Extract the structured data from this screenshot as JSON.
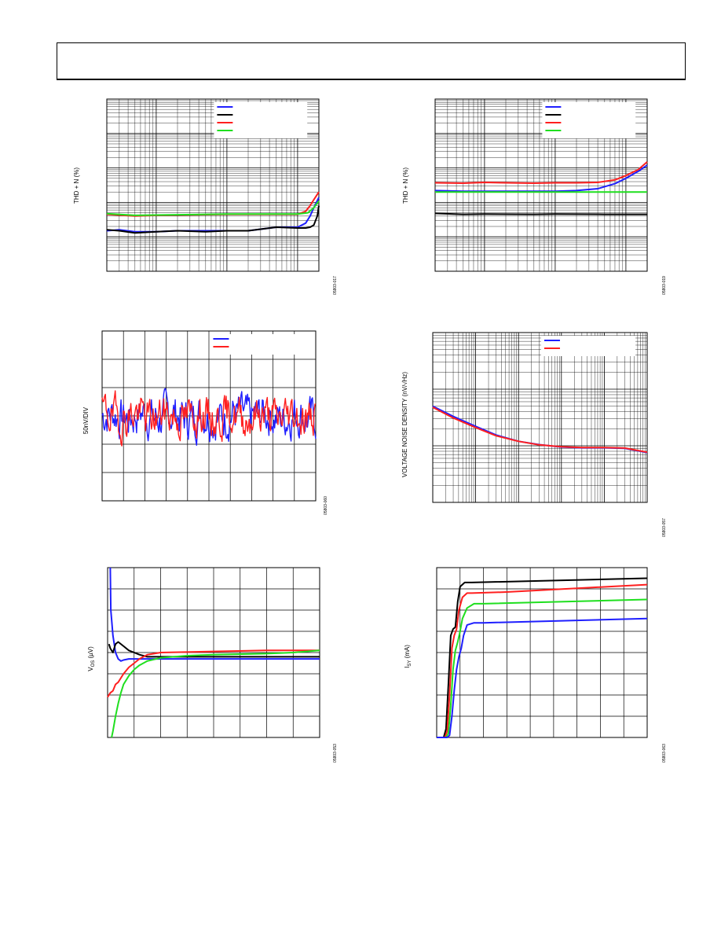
{
  "chart_data": [
    {
      "id": "thd-vs-freq-1",
      "type": "line",
      "title": "",
      "xlabel": "",
      "ylabel": "THD + N (%)",
      "xscale": "log",
      "yscale": "log",
      "xlim": [
        20,
        20000
      ],
      "ylim": [
        0.0001,
        10
      ],
      "grid": true,
      "legend_placement": "top-right",
      "figure_id": "05803-017",
      "series": [
        {
          "color": "#1f1fff",
          "x": [
            20,
            30,
            50,
            100,
            200,
            500,
            1000,
            2000,
            5000,
            10000,
            13000,
            15000,
            17000,
            20000
          ],
          "y": [
            0.0015,
            0.0016,
            0.0014,
            0.0014,
            0.0015,
            0.0015,
            0.0015,
            0.0015,
            0.0019,
            0.0019,
            0.0025,
            0.004,
            0.007,
            0.014
          ]
        },
        {
          "color": "#000000",
          "x": [
            20,
            30,
            50,
            100,
            200,
            500,
            1000,
            2000,
            5000,
            10000,
            13000,
            15000,
            17000,
            19000,
            20000
          ],
          "y": [
            0.0016,
            0.0015,
            0.0013,
            0.0014,
            0.0015,
            0.0014,
            0.0015,
            0.0015,
            0.0019,
            0.0018,
            0.0018,
            0.0019,
            0.0022,
            0.004,
            0.008
          ]
        },
        {
          "color": "#ff1f1f",
          "x": [
            20,
            50,
            100,
            1000,
            5000,
            10000,
            13000,
            15000,
            17000,
            20000
          ],
          "y": [
            0.0045,
            0.004,
            0.0042,
            0.0045,
            0.0045,
            0.0045,
            0.0055,
            0.008,
            0.012,
            0.02
          ]
        },
        {
          "color": "#1fdf1f",
          "x": [
            20,
            50,
            100,
            1000,
            5000,
            10000,
            14000,
            17000,
            20000
          ],
          "y": [
            0.0047,
            0.0042,
            0.0043,
            0.0046,
            0.0046,
            0.0046,
            0.005,
            0.007,
            0.011
          ]
        }
      ]
    },
    {
      "id": "thd-vs-freq-2",
      "type": "line",
      "title": "",
      "xlabel": "",
      "ylabel": "THD + N (%)",
      "xscale": "log",
      "yscale": "log",
      "xlim": [
        20,
        20000
      ],
      "ylim": [
        0.0001,
        10
      ],
      "grid": true,
      "legend_placement": "top-right",
      "figure_id": "05803-019",
      "series": [
        {
          "color": "#1f1fff",
          "x": [
            20,
            50,
            100,
            200,
            500,
            1000,
            2000,
            4000,
            7000,
            10000,
            15000,
            20000
          ],
          "y": [
            0.022,
            0.021,
            0.021,
            0.021,
            0.021,
            0.021,
            0.022,
            0.025,
            0.035,
            0.05,
            0.08,
            0.12
          ]
        },
        {
          "color": "#000000",
          "x": [
            20,
            50,
            100,
            500,
            1000,
            5000,
            20000
          ],
          "y": [
            0.0048,
            0.0045,
            0.0046,
            0.0045,
            0.0046,
            0.0045,
            0.0045
          ]
        },
        {
          "color": "#ff1f1f",
          "x": [
            20,
            50,
            100,
            200,
            500,
            1000,
            2000,
            4000,
            7000,
            10000,
            15000,
            20000
          ],
          "y": [
            0.037,
            0.036,
            0.038,
            0.037,
            0.036,
            0.037,
            0.037,
            0.038,
            0.045,
            0.06,
            0.09,
            0.15
          ]
        },
        {
          "color": "#1fdf1f",
          "x": [
            20,
            100,
            1000,
            10000,
            20000
          ],
          "y": [
            0.02,
            0.02,
            0.02,
            0.02,
            0.02
          ]
        }
      ]
    },
    {
      "id": "noise-time",
      "type": "line",
      "title": "",
      "xlabel": "",
      "ylabel": "50nV/DIV",
      "xlim": [
        0,
        10
      ],
      "ylim": [
        -3,
        3
      ],
      "grid": true,
      "legend_placement": "top-right",
      "figure_id": "05803-060",
      "series": [
        {
          "color": "#1f1fff",
          "seed": 7,
          "amplitude": 0.75,
          "offset": 0.05
        },
        {
          "color": "#ff1f1f",
          "seed": 19,
          "amplitude": 0.7,
          "offset": 0.15
        }
      ]
    },
    {
      "id": "voltage-noise-density",
      "type": "line",
      "title": "",
      "xlabel": "",
      "ylabel": "VOLTAGE NOISE DENSITY (nV/√Hz)",
      "xscale": "log",
      "yscale": "log",
      "xlim": [
        1,
        100000
      ],
      "ylim": [
        1,
        1000
      ],
      "grid": true,
      "legend_placement": "top-right",
      "figure_id": "05803-057",
      "series": [
        {
          "color": "#1f1fff",
          "x": [
            1,
            3,
            10,
            30,
            100,
            300,
            1000,
            3000,
            10000,
            30000,
            100000
          ],
          "y": [
            50,
            33,
            22,
            15.5,
            12,
            10.5,
            9.5,
            9.2,
            9.2,
            9,
            7.6
          ]
        },
        {
          "color": "#ff1f1f",
          "x": [
            1,
            3,
            10,
            30,
            100,
            300,
            1000,
            3000,
            10000,
            30000,
            100000
          ],
          "y": [
            48,
            31,
            21,
            15,
            12,
            10.4,
            9.6,
            9.3,
            9.3,
            9.1,
            7.7
          ]
        }
      ]
    },
    {
      "id": "vos-warmup",
      "type": "line",
      "title": "",
      "xlabel": "",
      "ylabel": "V",
      "ylabel_sub": "OS",
      "ylabel_unit": " (µV)",
      "xlim": [
        0,
        80
      ],
      "ylim": [
        0,
        80
      ],
      "grid": true,
      "figure_id": "05803-053",
      "annotation": "",
      "series": [
        {
          "color": "#1f1fff",
          "x": [
            1,
            1.2,
            2,
            3,
            4,
            5,
            6,
            8,
            10,
            20,
            40,
            60,
            80
          ],
          "y": [
            80,
            60,
            48,
            40,
            37,
            36,
            36.5,
            37,
            37,
            37,
            37,
            37,
            37
          ]
        },
        {
          "color": "#000000",
          "x": [
            0.5,
            1,
            2,
            3,
            4,
            6,
            8,
            10,
            12,
            15,
            20,
            40,
            60,
            80
          ],
          "y": [
            44,
            42,
            40,
            44,
            45,
            43,
            41,
            40,
            39,
            38,
            38,
            38,
            38,
            38
          ]
        },
        {
          "color": "#ff1f1f",
          "x": [
            0,
            1,
            2,
            3,
            4,
            5,
            6,
            8,
            10,
            12,
            15,
            20,
            40,
            60,
            80
          ],
          "y": [
            19,
            21,
            22,
            25,
            26,
            28,
            30,
            33,
            35,
            37,
            39,
            40,
            40.5,
            41,
            41
          ]
        },
        {
          "color": "#1fdf1f",
          "x": [
            1.5,
            2,
            3,
            4,
            5,
            6,
            8,
            10,
            12,
            15,
            20,
            25,
            30,
            40,
            60,
            70,
            80
          ],
          "y": [
            0,
            3,
            10,
            16,
            21,
            25,
            29,
            32,
            34,
            36,
            37.5,
            38,
            38.5,
            39,
            39.5,
            40,
            41
          ]
        }
      ]
    },
    {
      "id": "isy-vs-vsy",
      "type": "line",
      "title": "",
      "xlabel": "",
      "ylabel": "I",
      "ylabel_sub": "SY",
      "ylabel_unit": " (mA)",
      "xlim": [
        0,
        9
      ],
      "ylim": [
        0,
        8
      ],
      "grid": true,
      "figure_id": "05803-063",
      "annotation": "",
      "series": [
        {
          "color": "#000000",
          "x": [
            0,
            0.3,
            0.4,
            0.5,
            0.6,
            0.7,
            0.8,
            0.9,
            1.0,
            1.2,
            1.5,
            9
          ],
          "y": [
            0,
            0,
            0.4,
            2.5,
            4.8,
            5.1,
            5.2,
            6.4,
            7.1,
            7.3,
            7.3,
            7.5
          ]
        },
        {
          "color": "#ff1f1f",
          "x": [
            0,
            0.35,
            0.45,
            0.55,
            0.65,
            0.75,
            0.85,
            0.95,
            1.1,
            1.3,
            1.5,
            3,
            9
          ],
          "y": [
            0,
            0,
            0.3,
            2,
            4.2,
            4.8,
            5.1,
            6.0,
            6.6,
            6.8,
            6.8,
            6.85,
            7.2
          ]
        },
        {
          "color": "#1fdf1f",
          "x": [
            0,
            0.4,
            0.5,
            0.6,
            0.7,
            0.8,
            0.9,
            1.0,
            1.1,
            1.3,
            1.6,
            2,
            9
          ],
          "y": [
            0,
            0,
            0.2,
            1.5,
            3.2,
            4.1,
            4.5,
            5.0,
            5.6,
            6.1,
            6.3,
            6.3,
            6.5
          ]
        },
        {
          "color": "#1f1fff",
          "x": [
            0,
            0.45,
            0.55,
            0.65,
            0.75,
            0.85,
            0.95,
            1.05,
            1.15,
            1.3,
            1.6,
            2,
            9
          ],
          "y": [
            0,
            0,
            0.1,
            1,
            2.2,
            3.2,
            3.8,
            4.2,
            4.8,
            5.3,
            5.4,
            5.4,
            5.6
          ]
        }
      ]
    }
  ]
}
